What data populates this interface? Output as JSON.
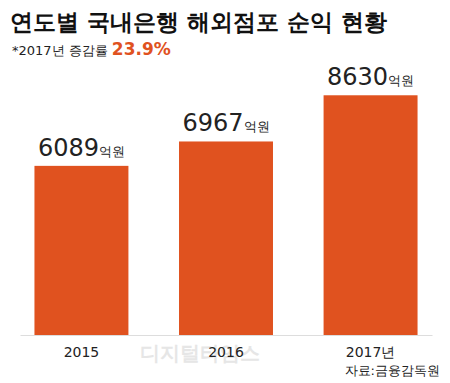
{
  "chart_data": {
    "type": "bar",
    "title": "연도별 국내은행 해외점포 순익 현황",
    "subtitle": "*2017년 증감률 23.9%",
    "categories": [
      "2015",
      "2016",
      "2017년"
    ],
    "values": [
      6089,
      6967,
      8630
    ],
    "value_labels": [
      "6089억원",
      "6967억원",
      "8630억원"
    ],
    "data_labels": true,
    "color": "#e0521f",
    "ylim": [
      0,
      9000
    ],
    "tick_labels": "x",
    "grid": false,
    "source": "자료:금융감독원",
    "watermark": "디지털타임스"
  }
}
